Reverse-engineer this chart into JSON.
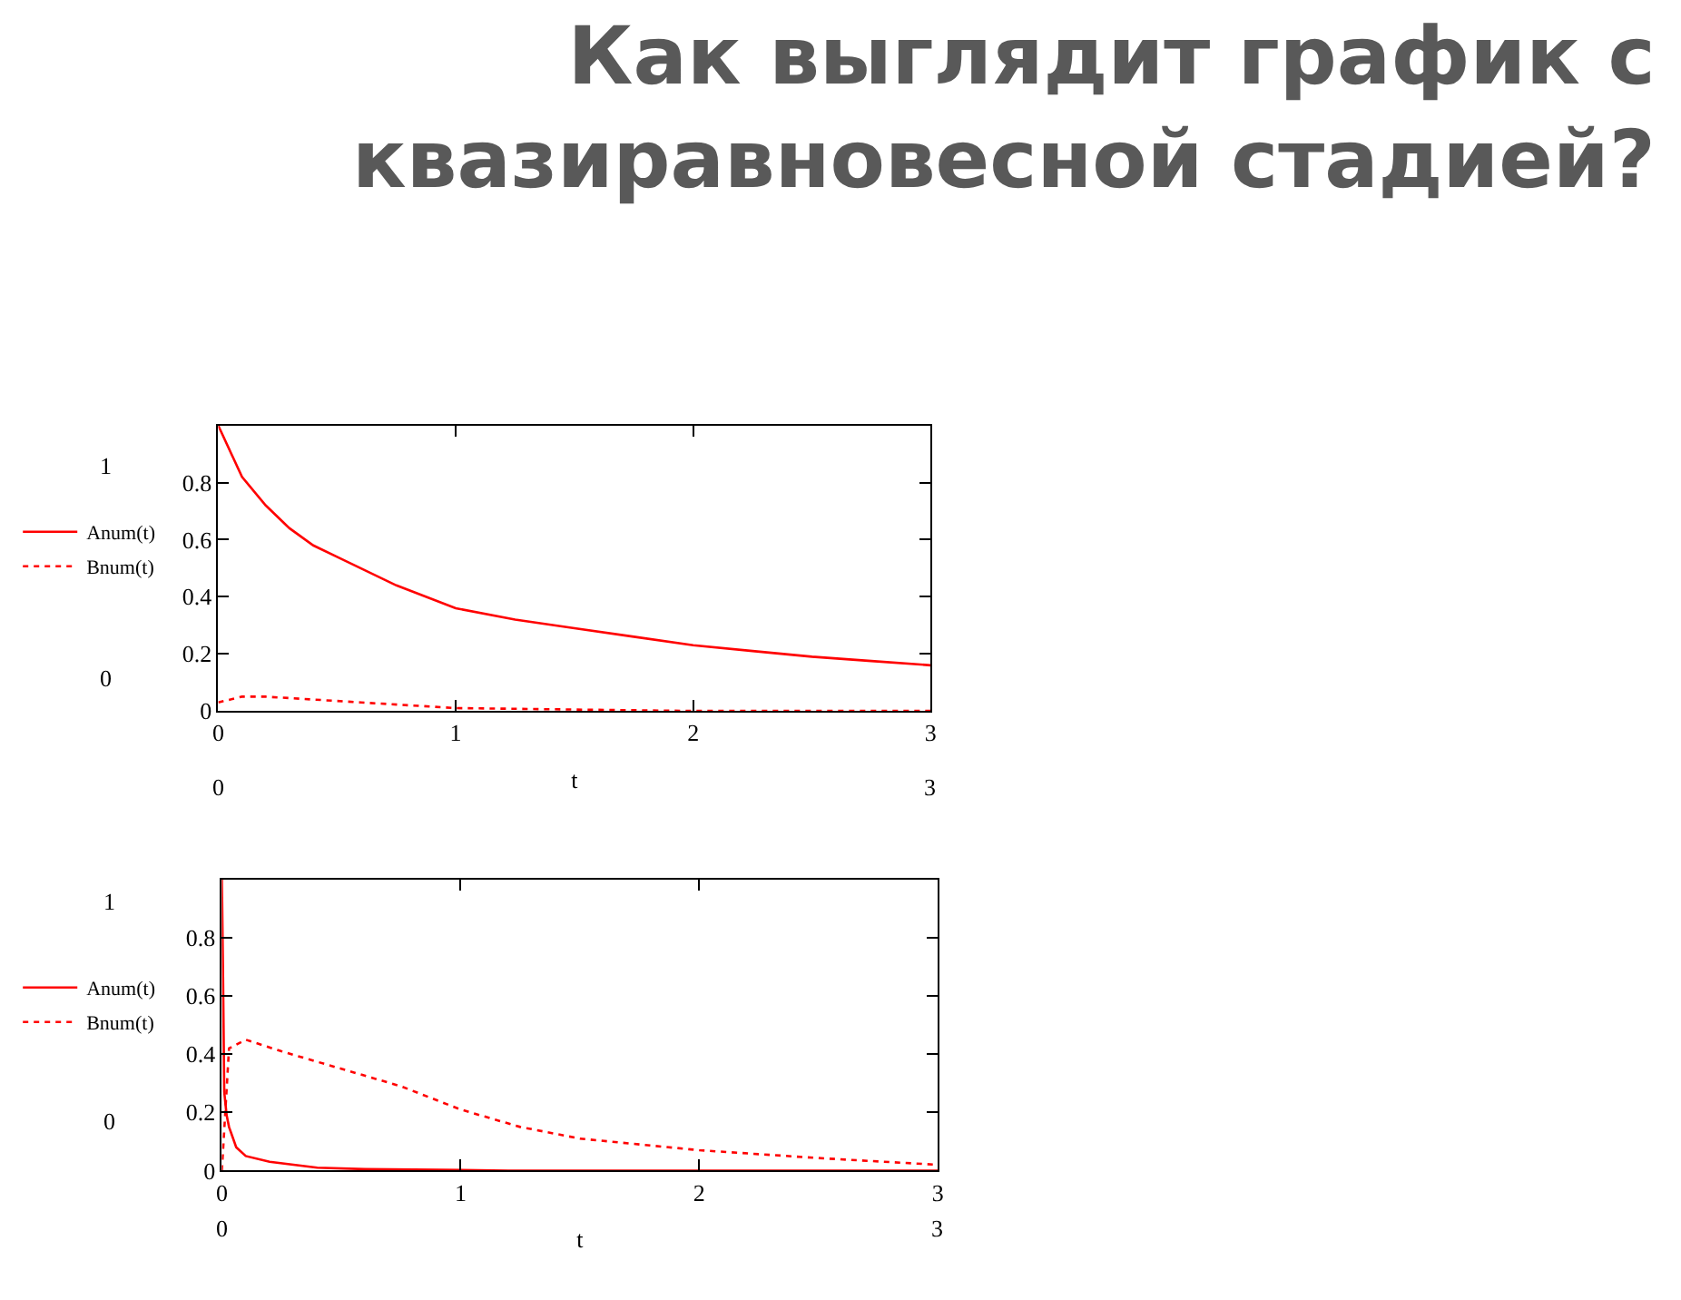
{
  "chart_data": [
    {
      "type": "line",
      "title": "Как выглядит график с квазиравновесной стадией?",
      "xlabel": "t",
      "xlim": [
        0,
        3
      ],
      "xticks": [
        0,
        1,
        2,
        3
      ],
      "ylim": [
        0,
        1
      ],
      "yticks": [
        0,
        0.2,
        0.4,
        0.6,
        0.8
      ],
      "legend": "left",
      "marker": "none",
      "annotations": [
        "1",
        "0",
        "0",
        "3"
      ],
      "series": [
        {
          "name": "Anum(t)",
          "color": "#ff0000",
          "line_style": "solid",
          "x": [
            0,
            0.1,
            0.2,
            0.3,
            0.4,
            0.5,
            0.75,
            1.0,
            1.25,
            1.5,
            1.75,
            2.0,
            2.25,
            2.5,
            2.75,
            3.0
          ],
          "values": [
            1.0,
            0.82,
            0.72,
            0.64,
            0.58,
            0.54,
            0.44,
            0.36,
            0.32,
            0.29,
            0.26,
            0.23,
            0.21,
            0.19,
            0.175,
            0.16
          ]
        },
        {
          "name": "Bnum(t)",
          "color": "#ff0000",
          "line_style": "dotted",
          "x": [
            0,
            0.1,
            0.2,
            0.4,
            0.6,
            0.8,
            1.0,
            1.5,
            2.0,
            2.5,
            3.0
          ],
          "values": [
            0.03,
            0.05,
            0.05,
            0.04,
            0.03,
            0.02,
            0.01,
            0.005,
            0,
            0,
            0
          ]
        }
      ]
    },
    {
      "type": "line",
      "xlabel": "t",
      "xlim": [
        0,
        3
      ],
      "xticks": [
        0,
        1,
        2,
        3
      ],
      "ylim": [
        0,
        1
      ],
      "yticks": [
        0,
        0.2,
        0.4,
        0.6,
        0.8
      ],
      "legend": "left",
      "marker": "none",
      "annotations": [
        "1",
        "0",
        "0",
        "3"
      ],
      "series": [
        {
          "name": "Anum(t)",
          "color": "#ff0000",
          "line_style": "solid",
          "x": [
            0,
            0.005,
            0.01,
            0.02,
            0.03,
            0.06,
            0.1,
            0.2,
            0.4,
            0.6,
            1.2,
            2.0,
            3.0
          ],
          "values": [
            1.0,
            0.66,
            0.27,
            0.19,
            0.15,
            0.08,
            0.05,
            0.03,
            0.01,
            0.005,
            0,
            0,
            0
          ]
        },
        {
          "name": "Bnum(t)",
          "color": "#ff0000",
          "line_style": "dotted",
          "x": [
            0,
            0.03,
            0.1,
            0.25,
            0.5,
            0.75,
            1.0,
            1.25,
            1.5,
            2.0,
            2.5,
            3.0
          ],
          "values": [
            0,
            0.42,
            0.45,
            0.41,
            0.35,
            0.29,
            0.21,
            0.15,
            0.11,
            0.07,
            0.043,
            0.02
          ]
        }
      ]
    }
  ]
}
